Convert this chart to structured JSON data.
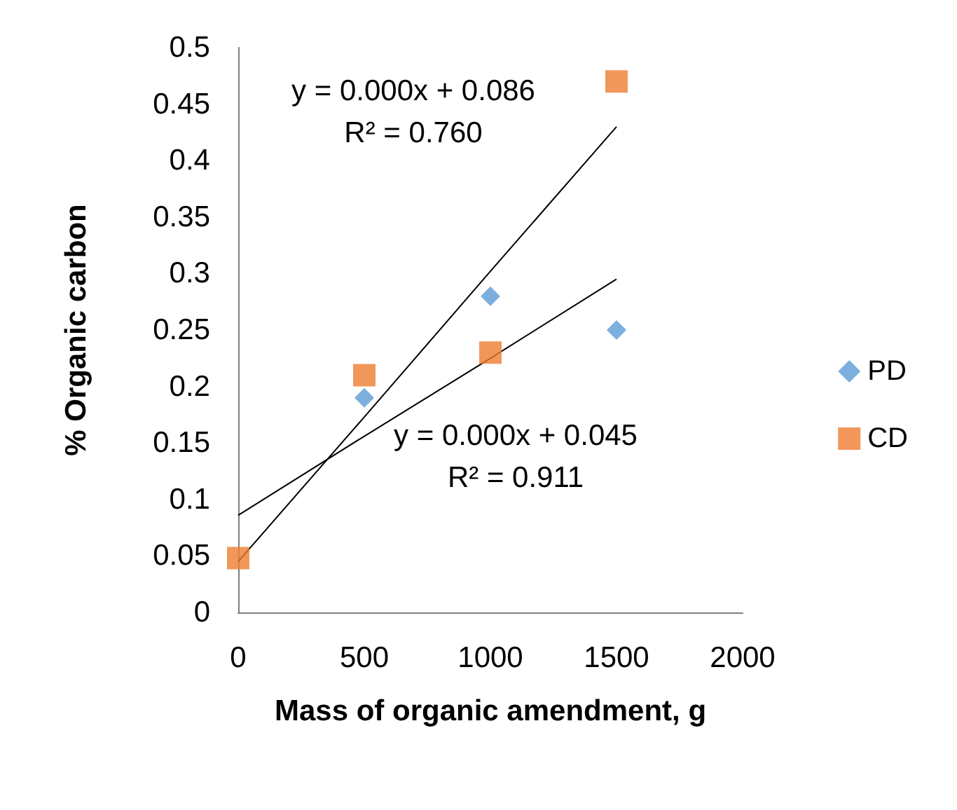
{
  "chart_data": {
    "type": "scatter",
    "xlabel": "Mass of organic amendment, g",
    "ylabel": "% Organic carbon",
    "x": [
      0,
      500,
      1000,
      1500
    ],
    "series": [
      {
        "name": "PD",
        "color": "#5b9bd5",
        "marker": "diamond",
        "values": [
          null,
          0.19,
          0.28,
          0.25
        ]
      },
      {
        "name": "CD",
        "color": "#ed7d31",
        "marker": "square",
        "values": [
          0.048,
          0.21,
          0.23,
          0.47
        ]
      },
      {
        "type": "line",
        "values": [
          0.086,
          0.156,
          0.225,
          0.295
        ],
        "color": "#000000",
        "marker": "none"
      },
      {
        "type": "line",
        "values": [
          0.045,
          0.173,
          0.302,
          0.43
        ],
        "color": "#000000",
        "marker": "none"
      }
    ],
    "xlim": [
      0,
      2000
    ],
    "xticks": [
      0,
      500,
      1000,
      1500,
      2000
    ],
    "ylim": [
      0,
      0.5
    ],
    "yticks": [
      0,
      0.05,
      0.1,
      0.15,
      0.2,
      0.25,
      0.3,
      0.35,
      0.4,
      0.45,
      0.5
    ],
    "annotations": [
      "y = 0.000x + 0.086\nR² = 0.760",
      "y = 0.000x + 0.045\nR² = 0.911"
    ],
    "grid": false,
    "legend": "right"
  }
}
